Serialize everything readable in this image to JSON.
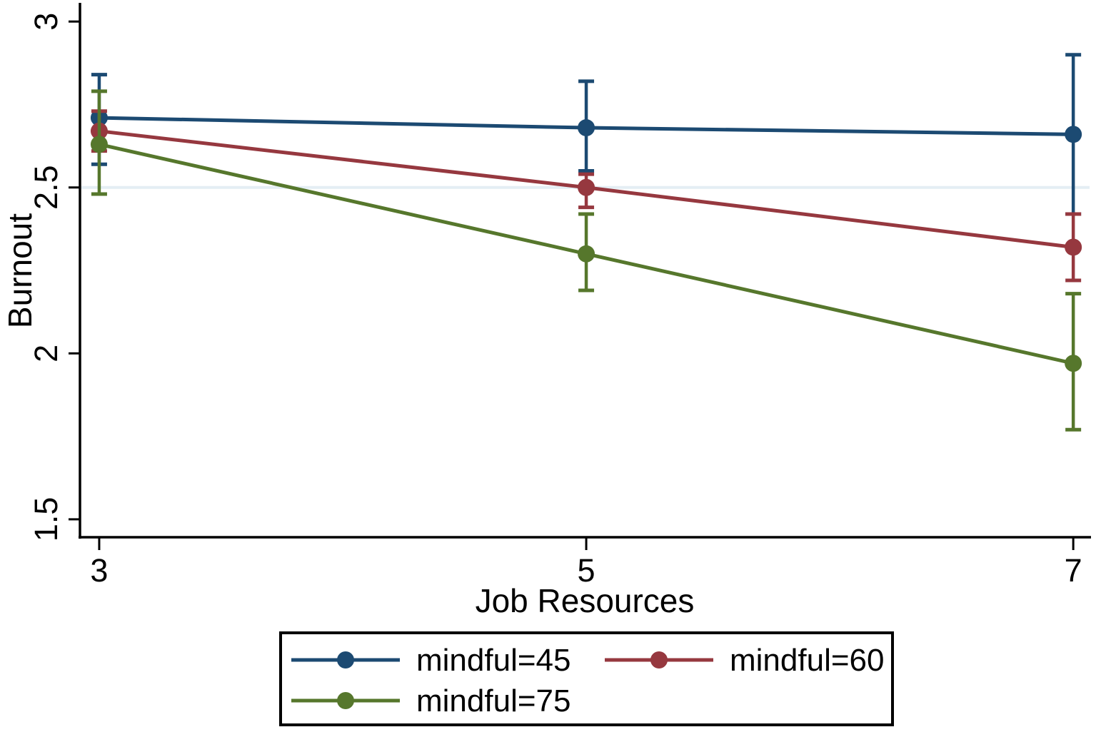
{
  "chart_data": {
    "type": "line",
    "title": "",
    "xlabel": "Job Resources",
    "ylabel": "Burnout",
    "x": [
      3,
      5,
      7
    ],
    "xticks": [
      {
        "value": 3,
        "label": "3"
      },
      {
        "value": 5,
        "label": "5"
      },
      {
        "value": 7,
        "label": "7"
      }
    ],
    "yticks": [
      {
        "value": 3,
        "label": "3"
      },
      {
        "value": 2.5,
        "label": "2.5"
      },
      {
        "value": 2,
        "label": "2"
      },
      {
        "value": 1.5,
        "label": "1.5"
      }
    ],
    "xlim": [
      2.921,
      7.067
    ],
    "ylim": [
      1.446,
      3.052
    ],
    "grid": false,
    "reference_line": {
      "y": 2.5,
      "color": "#e4eef4"
    },
    "series": [
      {
        "name": "mindful=45",
        "color": "#1c4a72",
        "values": [
          2.71,
          2.68,
          2.66
        ],
        "ci_low": [
          2.57,
          2.55,
          2.42
        ],
        "ci_high": [
          2.84,
          2.82,
          2.9
        ]
      },
      {
        "name": "mindful=60",
        "color": "#96383f",
        "values": [
          2.67,
          2.5,
          2.32
        ],
        "ci_low": [
          2.61,
          2.44,
          2.22
        ],
        "ci_high": [
          2.73,
          2.54,
          2.42
        ]
      },
      {
        "name": "mindful=75",
        "color": "#56772c",
        "values": [
          2.63,
          2.3,
          1.97
        ],
        "ci_low": [
          2.48,
          2.19,
          1.77
        ],
        "ci_high": [
          2.79,
          2.42,
          2.18
        ]
      }
    ],
    "legend": {
      "position": "bottom",
      "entries": [
        "mindful=45",
        "mindful=60",
        "mindful=75"
      ]
    },
    "axis_color": "#000000",
    "text_color": "#000000",
    "background": "#ffffff"
  }
}
